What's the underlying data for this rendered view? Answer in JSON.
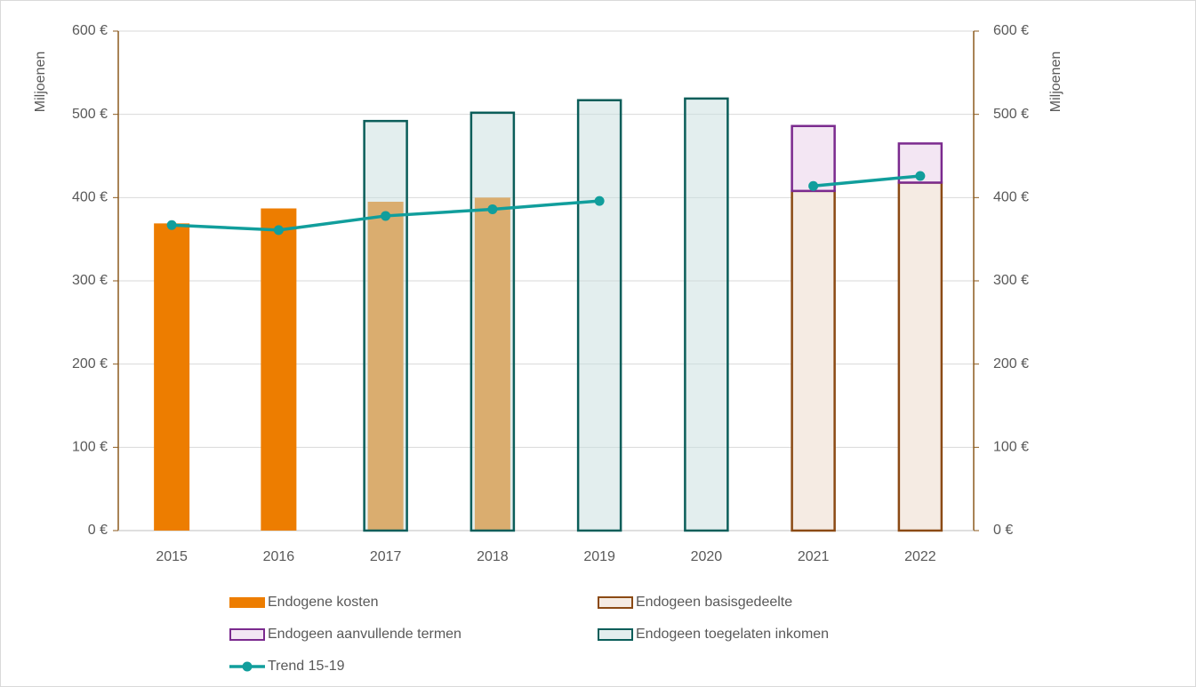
{
  "chart_data": {
    "type": "bar",
    "y_label": "Miljoenen",
    "y2_label": "Miljoenen",
    "categories": [
      "2015",
      "2016",
      "2017",
      "2018",
      "2019",
      "2020",
      "2021",
      "2022"
    ],
    "series": [
      {
        "name": "Endogene kosten",
        "color": "#ed7d00",
        "values": [
          369,
          387,
          395,
          400,
          null,
          null,
          null,
          null
        ]
      },
      {
        "name": "Endogeen basisgedeelte",
        "color": "#8b4a14",
        "values": [
          null,
          null,
          null,
          null,
          null,
          null,
          408,
          418
        ]
      },
      {
        "name": "Endogeen aanvullende termen",
        "color": "#7b2a8e",
        "values": [
          null,
          null,
          null,
          null,
          null,
          null,
          78,
          47
        ]
      },
      {
        "name": "Endogeen toegelaten inkomen",
        "color": "#0b5e5a",
        "values": [
          null,
          null,
          492,
          502,
          517,
          519,
          null,
          null
        ]
      },
      {
        "name": "Trend 15-19",
        "type": "line",
        "color": "#119e9c",
        "values": [
          367,
          361,
          378,
          386,
          396,
          null,
          414,
          426
        ]
      }
    ],
    "ylim": [
      0,
      600
    ],
    "yticks": [
      {
        "value": 0,
        "label": "0 €"
      },
      {
        "value": 100,
        "label": "100 €"
      },
      {
        "value": 200,
        "label": "200 €"
      },
      {
        "value": 300,
        "label": "300 €"
      },
      {
        "value": 400,
        "label": "400 €"
      },
      {
        "value": 500,
        "label": "500 €"
      },
      {
        "value": 600,
        "label": "600 €"
      }
    ],
    "y2lim": [
      0,
      600
    ],
    "y2ticks": [
      {
        "value": 0,
        "label": "0 €"
      },
      {
        "value": 100,
        "label": "100 €"
      },
      {
        "value": 200,
        "label": "200 €"
      },
      {
        "value": 300,
        "label": "300 €"
      },
      {
        "value": 400,
        "label": "400 €"
      },
      {
        "value": 500,
        "label": "500 €"
      },
      {
        "value": 600,
        "label": "600 €"
      }
    ],
    "grid": true,
    "legend": "bottom"
  }
}
